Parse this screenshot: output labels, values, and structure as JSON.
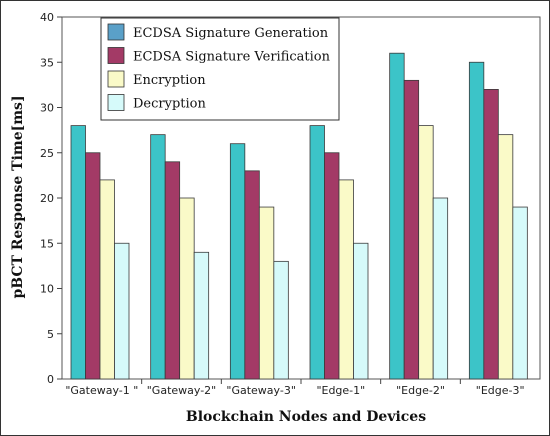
{
  "chart_data": {
    "type": "bar",
    "categories": [
      "\"Gateway-1 \"",
      "\"Gateway-2\"",
      "\"Gateway-3\"",
      "\"Edge-1\"",
      "\"Edge-2\"",
      "\"Edge-3\""
    ],
    "series": [
      {
        "name": "ECDSA Signature Generation",
        "values": [
          28,
          27,
          26,
          28,
          36,
          35
        ],
        "color": "#3cc4c8"
      },
      {
        "name": "ECDSA Signature Verification",
        "values": [
          25,
          24,
          23,
          25,
          33,
          32
        ],
        "color": "#a33a66"
      },
      {
        "name": "Encryption",
        "values": [
          22,
          20,
          19,
          22,
          28,
          27
        ],
        "color": "#fafac8"
      },
      {
        "name": "Decryption",
        "values": [
          15,
          14,
          13,
          15,
          20,
          19
        ],
        "color": "#d6fafa"
      }
    ],
    "legend_swatch_colors": [
      "#5aa0c8",
      "#a33a66",
      "#fafac8",
      "#d6fafa"
    ],
    "xlabel": "Blockchain Nodes and Devices",
    "ylabel": "pBCT Response Time[ms]",
    "ylim": [
      0,
      40
    ],
    "yticks": [
      0,
      5,
      10,
      15,
      20,
      25,
      30,
      35,
      40
    ],
    "legend_position": "top-left",
    "grid": false
  }
}
